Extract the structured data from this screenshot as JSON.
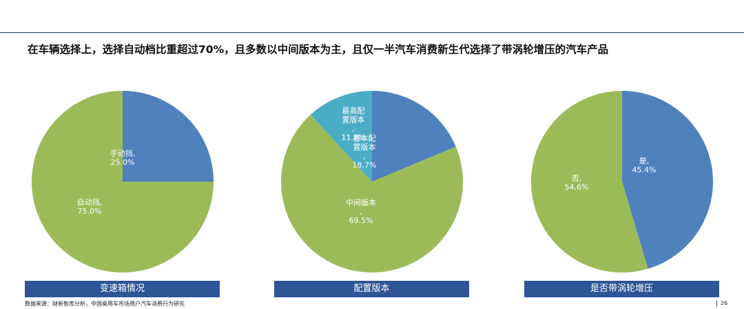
{
  "header": {
    "title": "在车辆选择上，选择自动档比重超过70%，且多数以中间版本为主，且仅一半汽车消费新生代选择了带涡轮增压的汽车产品"
  },
  "chart_data": [
    {
      "type": "pie",
      "caption": "变速箱情况",
      "slices": [
        {
          "label": "手动挡,",
          "value": 25.0,
          "value_text": "25.0%",
          "color": "#4f81bd"
        },
        {
          "label": "自动挡,",
          "value": 75.0,
          "value_text": "75.0%",
          "color": "#9bbb59"
        }
      ]
    },
    {
      "type": "pie",
      "caption": "配置版本",
      "slices": [
        {
          "label": "基本配置版本,",
          "value": 18.7,
          "value_text": "18.7%",
          "color": "#4f81bd"
        },
        {
          "label": "中间版本,",
          "value": 69.5,
          "value_text": "69.5%",
          "color": "#9bbb59"
        },
        {
          "label": "最高配置版本,",
          "value": 11.8,
          "value_text": "11.8%",
          "color": "#4bacc6"
        }
      ]
    },
    {
      "type": "pie",
      "caption": "是否带涡轮增压",
      "slices": [
        {
          "label": "是,",
          "value": 45.4,
          "value_text": "45.4%",
          "color": "#4f81bd"
        },
        {
          "label": "否,",
          "value": 54.6,
          "value_text": "54.6%",
          "color": "#9bbb59"
        }
      ]
    }
  ],
  "footer": {
    "source": "数据来源：财新智库分析，中国乘用车市场用户汽车消费行为研究",
    "page_number": "26"
  }
}
